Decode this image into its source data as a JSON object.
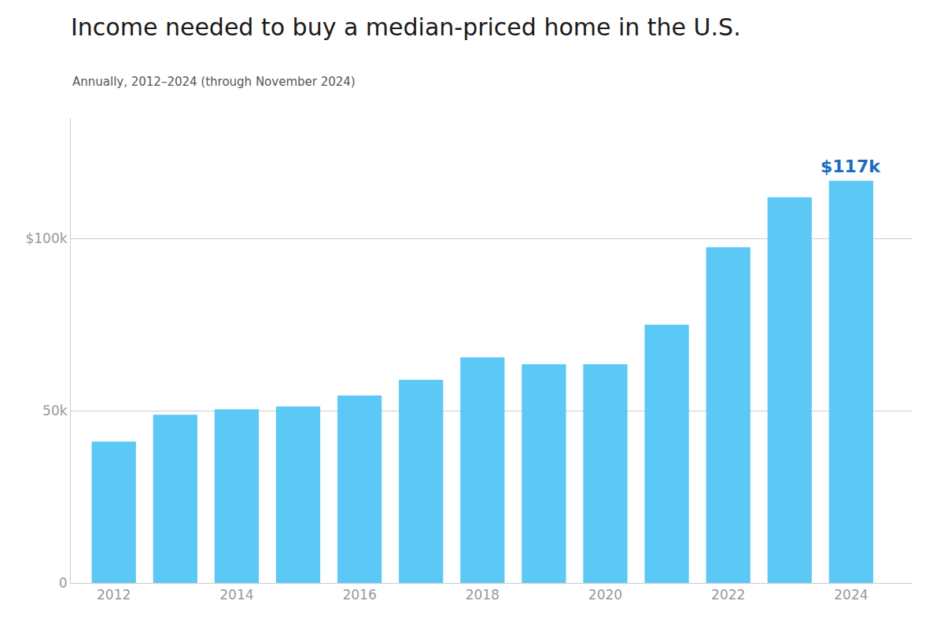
{
  "chart_data": {
    "type": "bar",
    "title": "Income needed to buy a median-priced home in the U.S.",
    "subtitle": "Annually, 2012–2024 (through November 2024)",
    "x": [
      2012,
      2013,
      2014,
      2015,
      2016,
      2017,
      2018,
      2019,
      2020,
      2021,
      2022,
      2023,
      2024
    ],
    "values": [
      41078,
      48800,
      50400,
      51200,
      54400,
      59000,
      65500,
      63500,
      63500,
      75000,
      97500,
      112000,
      116782
    ],
    "color": "#5BC8F5",
    "xlim": [
      2011.3,
      2025.0
    ],
    "xticks": [
      2012,
      2014,
      2016,
      2018,
      2020,
      2022,
      2024
    ],
    "ylim": [
      0,
      135000
    ],
    "yticks": [
      0,
      {
        "value": 50000,
        "label": "50k"
      },
      {
        "value": 100000,
        "label": "$100k"
      }
    ],
    "grid": true,
    "annotations": [
      {
        "text": "$117k",
        "x": 2024,
        "color": "#1a6bbf"
      }
    ]
  }
}
